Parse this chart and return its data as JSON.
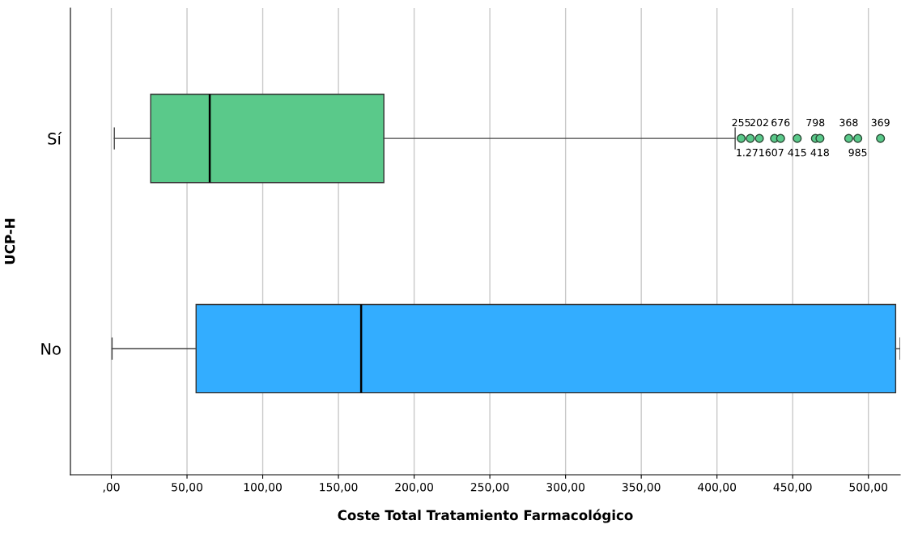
{
  "chart_data": {
    "type": "box",
    "orientation": "horizontal",
    "xlabel": "Coste Total Tratamiento Farmacológico",
    "ylabel": "UCP-H",
    "categories": [
      "Sí",
      "No"
    ],
    "colors": [
      "#5ac98a",
      "#33adff"
    ],
    "boxes": [
      {
        "low": 2,
        "q1": 26,
        "median": 65,
        "q3": 180,
        "high": 412,
        "outliers": [
          416,
          422,
          428,
          438,
          442,
          453,
          465,
          468,
          487,
          493,
          508
        ]
      },
      {
        "low": 0.5,
        "q1": 56,
        "median": 165,
        "q3": 518,
        "high": 521
      }
    ],
    "xlim": [
      -27,
      521
    ],
    "xticks": [
      {
        "value": 0,
        "label": ",00"
      },
      {
        "value": 50,
        "label": "50,00"
      },
      {
        "value": 100,
        "label": "100,00"
      },
      {
        "value": 150,
        "label": "150,00"
      },
      {
        "value": 200,
        "label": "200,00"
      },
      {
        "value": 250,
        "label": "250,00"
      },
      {
        "value": 300,
        "label": "300,00"
      },
      {
        "value": 350,
        "label": "350,00"
      },
      {
        "value": 400,
        "label": "400,00"
      },
      {
        "value": 450,
        "label": "450,00"
      },
      {
        "value": 500,
        "label": "500,00"
      }
    ],
    "grid": "x",
    "annotations": [
      "255",
      "1.271",
      "202",
      "607",
      "676",
      "415",
      "798",
      "418",
      "368",
      "985",
      "369"
    ]
  }
}
